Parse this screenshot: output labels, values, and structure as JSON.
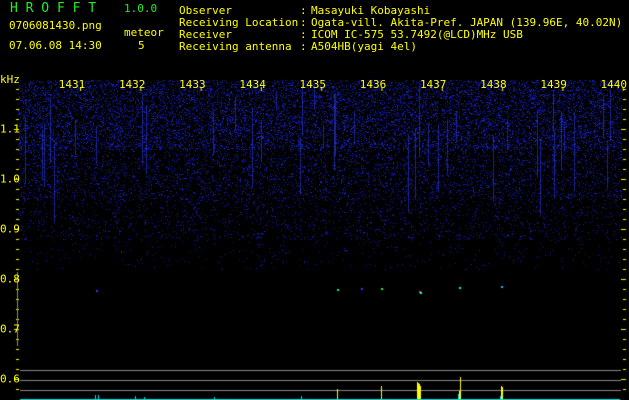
{
  "app": {
    "title": "H R O F F T",
    "version": "1.0.0"
  },
  "file": {
    "name": "0706081430.png",
    "datetime": "07.06.08 14:30"
  },
  "meteor": {
    "label": "meteor",
    "count": "5"
  },
  "info": [
    {
      "label": "Observer",
      "value": "Masayuki Kobayashi"
    },
    {
      "label": "Receiving Location",
      "value": "Ogata-vill. Akita-Pref. JAPAN (139.96E, 40.02N)"
    },
    {
      "label": "Receiver",
      "value": "ICOM IC-575 53.7492(@LCD)MHz USB"
    },
    {
      "label": "Receiving antenna",
      "value": "A504HB(yagi 4el)"
    }
  ],
  "axis": {
    "unit": "kHz",
    "time_labels": [
      "1431",
      "1432",
      "1433",
      "1434",
      "1435",
      "1436",
      "1437",
      "1438",
      "1439",
      "1440"
    ],
    "freq_labels": [
      "1.1",
      "1.0",
      "0.9",
      "0.8",
      "0.7",
      "0.6"
    ]
  },
  "colors": {
    "text": "#ffff00",
    "title": "#22ee22",
    "noise": "#2030c0",
    "baseline": "#00e0e0",
    "grid": "#888888"
  }
}
